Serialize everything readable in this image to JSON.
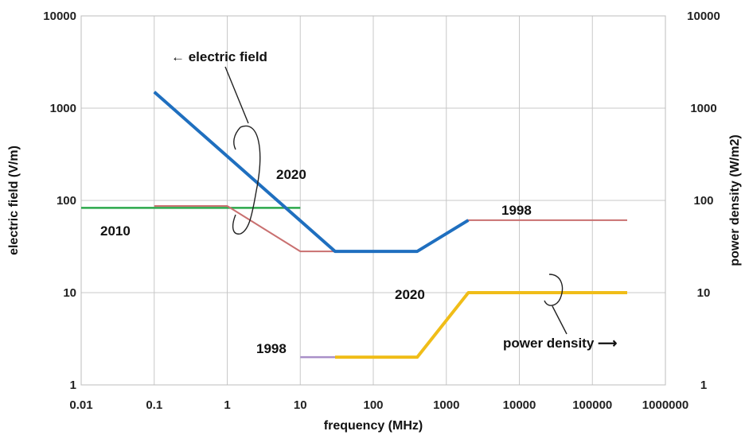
{
  "chart_data": {
    "type": "line",
    "title": "",
    "xlabel": "frequency (MHz)",
    "ylabel": "electric field (V/m)",
    "y2label": "power density (W/m2)",
    "xscale": "log",
    "yscale": "log",
    "xlim": [
      0.01,
      1000000
    ],
    "ylim": [
      1,
      10000
    ],
    "y2lim": [
      1,
      10000
    ],
    "grid": true,
    "x_ticks": [
      "0.01",
      "0.1",
      "1",
      "10",
      "100",
      "1000",
      "10000",
      "100000",
      "1000000"
    ],
    "y_ticks": [
      "1",
      "10",
      "100",
      "1000",
      "10000"
    ],
    "y2_ticks": [
      "1",
      "10",
      "100",
      "1000",
      "10000"
    ],
    "series": [
      {
        "key": "ef2010",
        "color": "#2ba84a",
        "width": 2.5,
        "points": [
          [
            0.01,
            83
          ],
          [
            10,
            83
          ]
        ]
      },
      {
        "key": "ef1998",
        "color": "#c97070",
        "width": 2,
        "points": [
          [
            0.1,
            87
          ],
          [
            1,
            87
          ],
          [
            10,
            28
          ],
          [
            30,
            28
          ],
          [
            400,
            28
          ],
          [
            2000,
            61
          ],
          [
            300000,
            61
          ]
        ]
      },
      {
        "key": "ef2020",
        "color": "#1f6fbf",
        "width": 4,
        "points": [
          [
            0.1,
            1500
          ],
          [
            30,
            28
          ],
          [
            400,
            28
          ],
          [
            2000,
            61
          ]
        ]
      },
      {
        "key": "pd1998",
        "color": "#a98fc8",
        "width": 2.5,
        "points": [
          [
            10,
            2
          ],
          [
            30,
            2
          ]
        ]
      },
      {
        "key": "pd2020",
        "color": "#f0bd18",
        "width": 4,
        "points": [
          [
            30,
            2
          ],
          [
            400,
            2
          ],
          [
            2000,
            10
          ],
          [
            300000,
            10
          ]
        ]
      }
    ],
    "annotations": {
      "electric_field": "← electric field",
      "label_2020_ef": "2020",
      "label_2010": "2010",
      "label_1998_ef": "1998",
      "label_2020_pd": "2020",
      "label_1998_pd": "1998",
      "power_density": "power density ⟶"
    }
  }
}
